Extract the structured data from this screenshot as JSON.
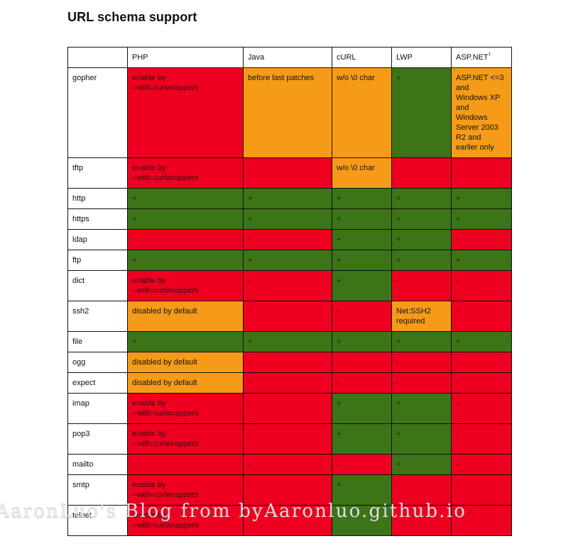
{
  "title": "URL schema support",
  "header": {
    "corner": "",
    "columns": [
      {
        "label": "PHP",
        "note": ""
      },
      {
        "label": "Java",
        "note": ""
      },
      {
        "label": "cURL",
        "note": ""
      },
      {
        "label": "LWP",
        "note": ""
      },
      {
        "label": "ASP.NET",
        "note": "1"
      }
    ]
  },
  "status_colors": {
    "red": "#ef0020",
    "green": "#3c7418",
    "orange": "#f59b18"
  },
  "rows": [
    {
      "scheme": "gopher",
      "cells": [
        {
          "text": "enable by\n--with-curlwrappers",
          "status": "red"
        },
        {
          "text": "before last patches",
          "status": "orange"
        },
        {
          "text": "w/o \\0 char",
          "status": "orange"
        },
        {
          "text": "+",
          "status": "green"
        },
        {
          "text": "ASP.NET <=3\nand\nWindows XP\nand\nWindows\nServer 2003\nR2 and\nearlier only",
          "status": "orange"
        }
      ]
    },
    {
      "scheme": "tftp",
      "cells": [
        {
          "text": "enable by\n--with-curlwrappers",
          "status": "red"
        },
        {
          "text": "-",
          "status": "red"
        },
        {
          "text": "w/o \\0 char",
          "status": "orange"
        },
        {
          "text": "-",
          "status": "red"
        },
        {
          "text": "-",
          "status": "red"
        }
      ]
    },
    {
      "scheme": "http",
      "cells": [
        {
          "text": "+",
          "status": "green"
        },
        {
          "text": "+",
          "status": "green"
        },
        {
          "text": "+",
          "status": "green"
        },
        {
          "text": "+",
          "status": "green"
        },
        {
          "text": "+",
          "status": "green"
        }
      ]
    },
    {
      "scheme": "https",
      "cells": [
        {
          "text": "+",
          "status": "green"
        },
        {
          "text": "+",
          "status": "green"
        },
        {
          "text": "+",
          "status": "green"
        },
        {
          "text": "+",
          "status": "green"
        },
        {
          "text": "+",
          "status": "green"
        }
      ]
    },
    {
      "scheme": "ldap",
      "cells": [
        {
          "text": "-",
          "status": "red"
        },
        {
          "text": "-",
          "status": "red"
        },
        {
          "text": "+",
          "status": "green"
        },
        {
          "text": "+",
          "status": "green"
        },
        {
          "text": "-",
          "status": "red"
        }
      ]
    },
    {
      "scheme": "ftp",
      "cells": [
        {
          "text": "+",
          "status": "green"
        },
        {
          "text": "+",
          "status": "green"
        },
        {
          "text": "+",
          "status": "green"
        },
        {
          "text": "+",
          "status": "green"
        },
        {
          "text": "+",
          "status": "green"
        }
      ]
    },
    {
      "scheme": "dict",
      "cells": [
        {
          "text": "enable by\n--with-curlwrappers",
          "status": "red"
        },
        {
          "text": "-",
          "status": "red"
        },
        {
          "text": "+",
          "status": "green"
        },
        {
          "text": "-",
          "status": "red"
        },
        {
          "text": "-",
          "status": "red"
        }
      ]
    },
    {
      "scheme": "ssh2",
      "cells": [
        {
          "text": "disabled by default",
          "status": "orange"
        },
        {
          "text": "-",
          "status": "red"
        },
        {
          "text": "-",
          "status": "red"
        },
        {
          "text": "Net:SSH2\nrequired",
          "status": "orange"
        },
        {
          "text": "-",
          "status": "red"
        }
      ]
    },
    {
      "scheme": "file",
      "cells": [
        {
          "text": "+",
          "status": "green"
        },
        {
          "text": "+",
          "status": "green"
        },
        {
          "text": "+",
          "status": "green"
        },
        {
          "text": "+",
          "status": "green"
        },
        {
          "text": "+",
          "status": "green"
        }
      ]
    },
    {
      "scheme": "ogg",
      "cells": [
        {
          "text": "disabled by default",
          "status": "orange"
        },
        {
          "text": "-",
          "status": "red"
        },
        {
          "text": "-",
          "status": "red"
        },
        {
          "text": "-",
          "status": "red"
        },
        {
          "text": "-",
          "status": "red"
        }
      ]
    },
    {
      "scheme": "expect",
      "cells": [
        {
          "text": "disabled by default",
          "status": "orange"
        },
        {
          "text": "-",
          "status": "red"
        },
        {
          "text": "-",
          "status": "red"
        },
        {
          "text": "-",
          "status": "red"
        },
        {
          "text": "-",
          "status": "red"
        }
      ]
    },
    {
      "scheme": "imap",
      "cells": [
        {
          "text": "enable by\n--with-curlwrappers",
          "status": "red"
        },
        {
          "text": "-",
          "status": "red"
        },
        {
          "text": "+",
          "status": "green"
        },
        {
          "text": "+",
          "status": "green"
        },
        {
          "text": "-",
          "status": "red"
        }
      ]
    },
    {
      "scheme": "pop3",
      "cells": [
        {
          "text": "enable by\n--with-curlwrappers",
          "status": "red"
        },
        {
          "text": "-",
          "status": "red"
        },
        {
          "text": "+",
          "status": "green"
        },
        {
          "text": "+",
          "status": "green"
        },
        {
          "text": "-",
          "status": "red"
        }
      ]
    },
    {
      "scheme": "mailto",
      "cells": [
        {
          "text": "-",
          "status": "red"
        },
        {
          "text": "-",
          "status": "red"
        },
        {
          "text": "-",
          "status": "red"
        },
        {
          "text": "+",
          "status": "green"
        },
        {
          "text": "-",
          "status": "red"
        }
      ]
    },
    {
      "scheme": "smtp",
      "cells": [
        {
          "text": "enable by\n--with-curlwrappers",
          "status": "red"
        },
        {
          "text": "-",
          "status": "red"
        },
        {
          "text": "+",
          "status": "green"
        },
        {
          "text": "-",
          "status": "red"
        },
        {
          "text": "-",
          "status": "red"
        }
      ]
    },
    {
      "scheme": "telnet",
      "cells": [
        {
          "text": "enable by\n--with-curlwrappers",
          "status": "red"
        },
        {
          "text": "-",
          "status": "red"
        },
        {
          "text": "+",
          "status": "green"
        },
        {
          "text": "-",
          "status": "red"
        },
        {
          "text": "-",
          "status": "red"
        }
      ]
    }
  ],
  "watermark": "AaronLuo's Blog from byAaronluo.github.io"
}
